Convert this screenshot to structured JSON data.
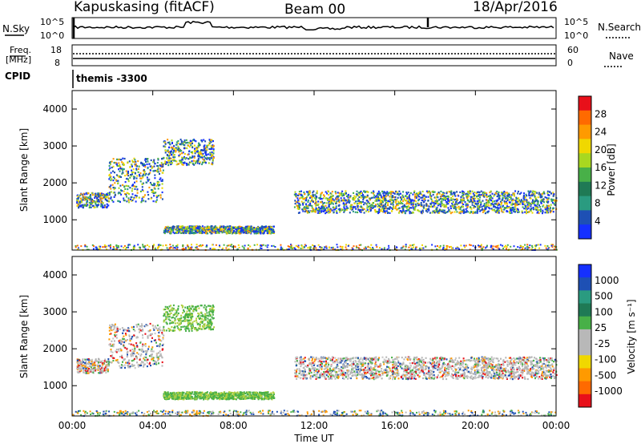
{
  "header": {
    "station": "Kapuskasing (fitACF)",
    "beam": "Beam 00",
    "date": "18/Apr/2016"
  },
  "top_panel": {
    "left_label": "N.Sky",
    "left_ticks": [
      "10^5",
      "10^0"
    ],
    "right_label": "N.Search",
    "right_ticks": [
      "10^5",
      "10^0"
    ]
  },
  "freq_panel": {
    "left_label_line1": "Freq.",
    "left_label_line2": "[MHz]",
    "left_ticks": [
      "18",
      "8"
    ],
    "right_label": "Nave",
    "right_ticks": [
      "60",
      "0"
    ]
  },
  "cpid": {
    "label": "CPID",
    "program": "themis -3300"
  },
  "chart_data": [
    {
      "type": "heatmap",
      "title": "",
      "ylabel": "Slant Range [km]",
      "xlabel": "",
      "x_ticks": [
        "00:00",
        "04:00",
        "08:00",
        "12:00",
        "16:00",
        "20:00",
        "00:00"
      ],
      "y_ticks": [
        1000,
        2000,
        3000,
        4000
      ],
      "ylim": [
        180,
        4500
      ],
      "colorbar_label": "Power [dB]",
      "colorbar_ticks": [
        "28",
        "24",
        "20",
        "16",
        "12",
        "8",
        "4"
      ],
      "colorbar_colors": [
        "#e8101a",
        "#ff6a00",
        "#ff9a00",
        "#f0d800",
        "#a8d820",
        "#48b048",
        "#1f7a55",
        "#2a9b80",
        "#1e50b4",
        "#1530ff"
      ],
      "bands": [
        {
          "t": [
            0.2,
            1.8
          ],
          "range": [
            1350,
            1750
          ]
        },
        {
          "t": [
            1.8,
            4.5
          ],
          "range": [
            1500,
            2700
          ]
        },
        {
          "t": [
            4.5,
            7.0
          ],
          "range": [
            2500,
            3200
          ]
        },
        {
          "t": [
            11.0,
            24.0
          ],
          "range": [
            1200,
            1800
          ]
        },
        {
          "t": [
            4.5,
            10.0
          ],
          "range": [
            650,
            850
          ]
        }
      ]
    },
    {
      "type": "heatmap",
      "title": "",
      "ylabel": "Slant Range [km]",
      "xlabel": "Time UT",
      "x_ticks": [
        "00:00",
        "04:00",
        "08:00",
        "12:00",
        "16:00",
        "20:00",
        "00:00"
      ],
      "y_ticks": [
        1000,
        2000,
        3000,
        4000
      ],
      "ylim": [
        180,
        4500
      ],
      "colorbar_label": "Velocity [m s⁻¹]",
      "colorbar_ticks": [
        "1000",
        "500",
        "100",
        "25",
        "-25",
        "-100",
        "-500",
        "-1000"
      ],
      "colorbar_colors": [
        "#1530ff",
        "#1e50b4",
        "#2a9b80",
        "#1f7a55",
        "#48b048",
        "#b8b8b8",
        "#b8b8b8",
        "#f0d800",
        "#ff9a00",
        "#ff6a00",
        "#e8101a"
      ],
      "bands": [
        {
          "t": [
            0.2,
            1.8
          ],
          "range": [
            1350,
            1750
          ]
        },
        {
          "t": [
            1.8,
            4.5
          ],
          "range": [
            1500,
            2700
          ]
        },
        {
          "t": [
            4.5,
            7.0
          ],
          "range": [
            2500,
            3200
          ]
        },
        {
          "t": [
            11.0,
            24.0
          ],
          "range": [
            1200,
            1800
          ]
        },
        {
          "t": [
            4.5,
            10.0
          ],
          "range": [
            650,
            850
          ]
        }
      ]
    }
  ]
}
